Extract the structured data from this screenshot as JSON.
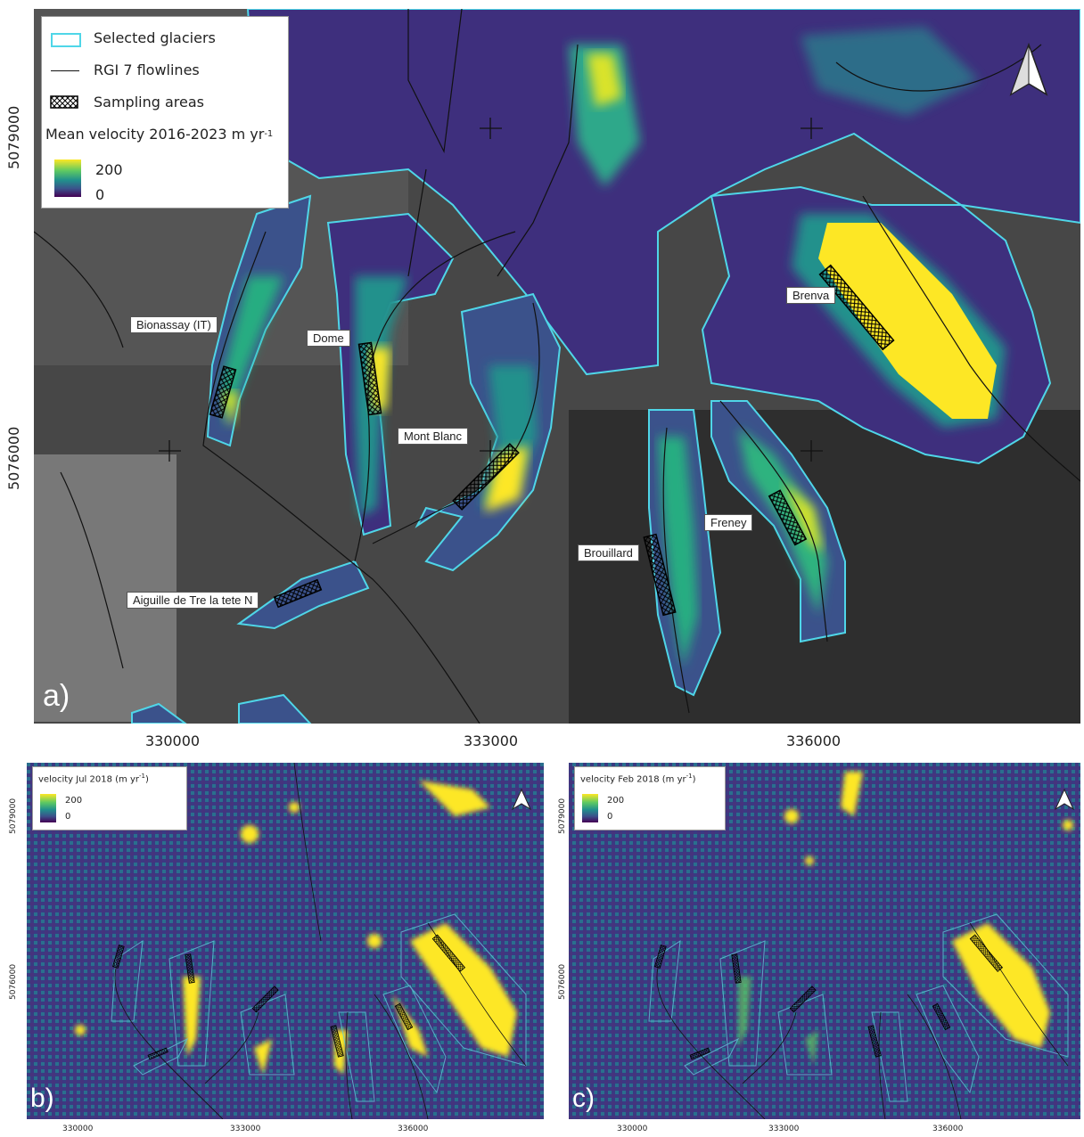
{
  "panel_a": {
    "label": "a)",
    "legend": {
      "selected_glaciers": "Selected glaciers",
      "flowlines": "RGI 7 flowlines",
      "sampling_areas": "Sampling areas",
      "velocity_title": "Mean velocity 2016-2023 m yr",
      "velocity_unit_exp": "-1",
      "cbar_max": "200",
      "cbar_min": "0"
    },
    "x_ticks": [
      "330000",
      "333000",
      "336000"
    ],
    "y_ticks": [
      "5079000",
      "5076000"
    ],
    "glaciers": [
      {
        "name": "Bionassay (IT)"
      },
      {
        "name": "Dome"
      },
      {
        "name": "Mont Blanc"
      },
      {
        "name": "Brenva"
      },
      {
        "name": "Brouillard"
      },
      {
        "name": "Freney"
      },
      {
        "name": "Aiguille de Tre la tete N"
      }
    ]
  },
  "panel_b": {
    "label": "b)",
    "legend_title": "velocity Jul 2018 (m yr",
    "legend_exp": "-1",
    "legend_close": ")",
    "cbar_max": "200",
    "cbar_min": "0",
    "x_ticks": [
      "330000",
      "333000",
      "336000"
    ],
    "y_ticks": [
      "5079000",
      "5076000"
    ]
  },
  "panel_c": {
    "label": "c)",
    "legend_title": "velocity Feb 2018 (m yr",
    "legend_exp": "-1",
    "legend_close": ")",
    "cbar_max": "200",
    "cbar_min": "0",
    "x_ticks": [
      "330000",
      "333000",
      "336000"
    ],
    "y_ticks": [
      "5079000",
      "5076000"
    ]
  },
  "colors": {
    "outline": "#4fd6e8",
    "high": "#fde725",
    "mid": "#21918c",
    "low": "#3b2f7a",
    "terrain": "#3a3a3a"
  }
}
